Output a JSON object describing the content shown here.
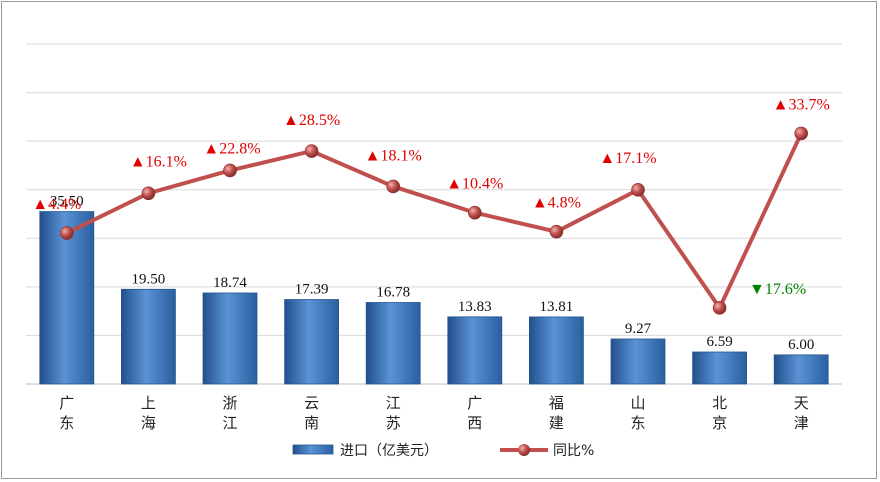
{
  "chart_data": {
    "type": "bar",
    "categories": [
      "广\n东",
      "上\n海",
      "浙\n江",
      "云\n南",
      "江\n苏",
      "广\n西",
      "福\n建",
      "山\n东",
      "北\n京",
      "天\n津"
    ],
    "series": [
      {
        "name": "进口（亿美元）",
        "type": "bar",
        "values": [
          35.5,
          19.5,
          18.74,
          17.39,
          16.78,
          13.83,
          13.81,
          9.27,
          6.59,
          6.0
        ],
        "labels": [
          "35.50",
          "19.50",
          "18.74",
          "17.39",
          "16.78",
          "13.83",
          "13.81",
          "9.27",
          "6.59",
          "6.00"
        ]
      },
      {
        "name": "同比%",
        "type": "line",
        "values": [
          4.4,
          16.1,
          22.8,
          28.5,
          18.1,
          10.4,
          4.8,
          17.1,
          -17.6,
          33.7
        ],
        "labels": [
          "▲4.4%",
          "▲16.1%",
          "▲22.8%",
          "▲28.5%",
          "▲18.1%",
          "▲10.4%",
          "▲4.8%",
          "▲17.1%",
          "▼17.6%",
          "▲33.7%"
        ]
      }
    ],
    "bar_ylim": [
      0,
      70
    ],
    "line_ylim": [
      -40,
      60
    ],
    "grid": true,
    "legend_position": "bottom",
    "colors": {
      "bar": "#3a78c8",
      "bar_edge": "#24578f",
      "line": "#c0504d",
      "up": "#e00000",
      "down": "#008000"
    }
  }
}
